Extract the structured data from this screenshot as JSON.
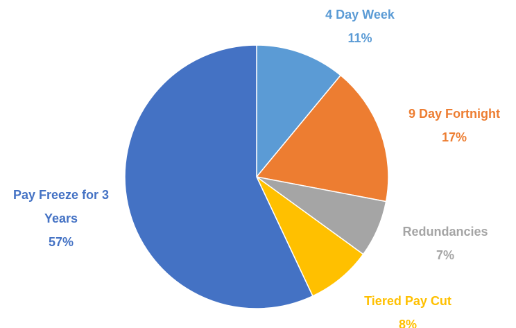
{
  "chart_data": {
    "type": "pie",
    "categories": [
      "4 Day Week",
      "9 Day Fortnight",
      "Redundancies",
      "Tiered Pay Cut",
      "Pay Freeze for 3 Years"
    ],
    "values": [
      11,
      17,
      7,
      8,
      57
    ],
    "value_labels": [
      "11%",
      "17%",
      "7%",
      "8%",
      "57%"
    ],
    "colors": [
      "#5b9bd5",
      "#ed7d31",
      "#a5a5a5",
      "#ffc000",
      "#4472c4"
    ]
  }
}
